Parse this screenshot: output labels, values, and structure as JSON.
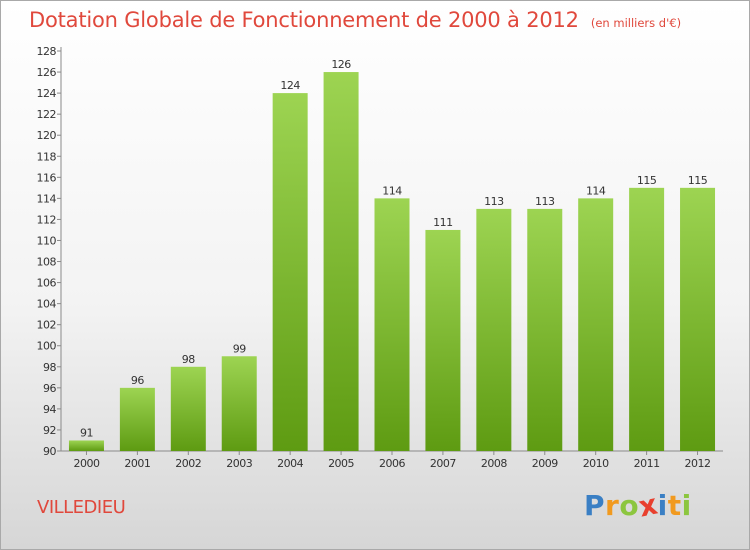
{
  "header": {
    "title": "Dotation Globale de Fonctionnement de 2000 à 2012",
    "unit": "(en milliers d'€)"
  },
  "footer": {
    "commune": "VILLEDIEU",
    "logo_letters": [
      "P",
      "r",
      "o",
      "x",
      "i",
      "t",
      "i"
    ]
  },
  "colors": {
    "title": "#e0483c",
    "bar_top": "#9dd452",
    "bar_bottom": "#5e9b12",
    "logo": [
      "#3a7fc4",
      "#f19a1f",
      "#8cc63f",
      "#e8402e",
      "#3a7fc4",
      "#f19a1f",
      "#8cc63f"
    ]
  },
  "chart_data": {
    "type": "bar",
    "title": "Dotation Globale de Fonctionnement de 2000 à 2012",
    "xlabel": "",
    "ylabel": "",
    "ylim": [
      90,
      128
    ],
    "ytick_step": 2,
    "grid": false,
    "categories": [
      "2000",
      "2001",
      "2002",
      "2003",
      "2004",
      "2005",
      "2006",
      "2007",
      "2008",
      "2009",
      "2010",
      "2011",
      "2012"
    ],
    "values": [
      91,
      96,
      98,
      99,
      124,
      126,
      114,
      111,
      113,
      113,
      114,
      115,
      115
    ]
  }
}
